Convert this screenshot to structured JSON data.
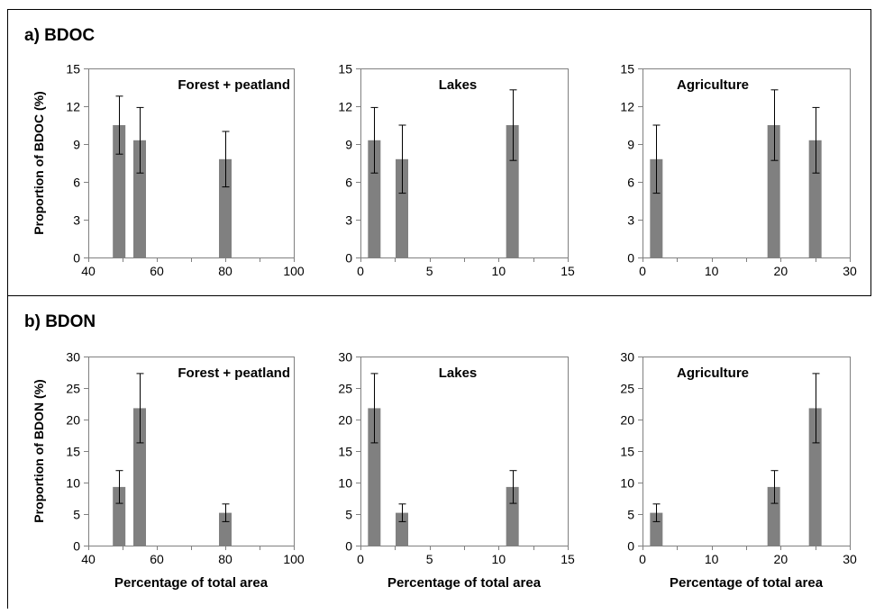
{
  "figure": {
    "panel_a_label": "a)  BDOC",
    "panel_b_label": "b)  BDON"
  },
  "chart_data": [
    {
      "type": "bar",
      "row": "a",
      "title": "Forest + peatland",
      "ylabel": "Proportion of BDOC (%)",
      "xlabel": "",
      "xlim": [
        40,
        100
      ],
      "xticks": [
        40,
        60,
        80,
        100
      ],
      "ylim": [
        0,
        15
      ],
      "yticks": [
        0,
        3,
        6,
        9,
        12,
        15
      ],
      "x": [
        49,
        55,
        80
      ],
      "values": [
        10.5,
        9.3,
        7.8
      ],
      "errors": [
        2.3,
        2.6,
        2.2
      ],
      "bar_color": "#808080",
      "grid": false
    },
    {
      "type": "bar",
      "row": "a",
      "title": "Lakes",
      "ylabel": "",
      "xlabel": "",
      "xlim": [
        0,
        15
      ],
      "xticks": [
        0,
        5,
        10,
        15
      ],
      "ylim": [
        0,
        15
      ],
      "yticks": [
        0,
        3,
        6,
        9,
        12,
        15
      ],
      "x": [
        1,
        3,
        11
      ],
      "values": [
        9.3,
        7.8,
        10.5
      ],
      "errors": [
        2.6,
        2.7,
        2.8
      ],
      "bar_color": "#808080",
      "grid": false
    },
    {
      "type": "bar",
      "row": "a",
      "title": "Agriculture",
      "ylabel": "",
      "xlabel": "",
      "xlim": [
        0,
        30
      ],
      "xticks": [
        0,
        10,
        20,
        30
      ],
      "ylim": [
        0,
        15
      ],
      "yticks": [
        0,
        3,
        6,
        9,
        12,
        15
      ],
      "x": [
        2,
        19,
        25
      ],
      "values": [
        7.8,
        10.5,
        9.3
      ],
      "errors": [
        2.7,
        2.8,
        2.6
      ],
      "bar_color": "#808080",
      "grid": false
    },
    {
      "type": "bar",
      "row": "b",
      "title": "Forest + peatland",
      "ylabel": "Proportion of BDON (%)",
      "xlabel": "Percentage of total area",
      "xlim": [
        40,
        100
      ],
      "xticks": [
        40,
        60,
        80,
        100
      ],
      "ylim": [
        0,
        30
      ],
      "yticks": [
        0,
        5,
        10,
        15,
        20,
        25,
        30
      ],
      "x": [
        49,
        55,
        80
      ],
      "values": [
        9.3,
        21.8,
        5.2
      ],
      "errors": [
        2.6,
        5.5,
        1.4
      ],
      "bar_color": "#808080",
      "grid": false
    },
    {
      "type": "bar",
      "row": "b",
      "title": "Lakes",
      "ylabel": "",
      "xlabel": "Percentage of total area",
      "xlim": [
        0,
        15
      ],
      "xticks": [
        0,
        5,
        10,
        15
      ],
      "ylim": [
        0,
        30
      ],
      "yticks": [
        0,
        5,
        10,
        15,
        20,
        25,
        30
      ],
      "x": [
        1,
        3,
        11
      ],
      "values": [
        21.8,
        5.2,
        9.3
      ],
      "errors": [
        5.5,
        1.4,
        2.6
      ],
      "bar_color": "#808080",
      "grid": false
    },
    {
      "type": "bar",
      "row": "b",
      "title": "Agriculture",
      "ylabel": "",
      "xlabel": "Percentage of total area",
      "xlim": [
        0,
        30
      ],
      "xticks": [
        0,
        10,
        20,
        30
      ],
      "ylim": [
        0,
        30
      ],
      "yticks": [
        0,
        5,
        10,
        15,
        20,
        25,
        30
      ],
      "x": [
        2,
        19,
        25
      ],
      "values": [
        5.2,
        9.3,
        21.8
      ],
      "errors": [
        1.4,
        2.6,
        5.5
      ],
      "bar_color": "#808080",
      "grid": false
    }
  ]
}
